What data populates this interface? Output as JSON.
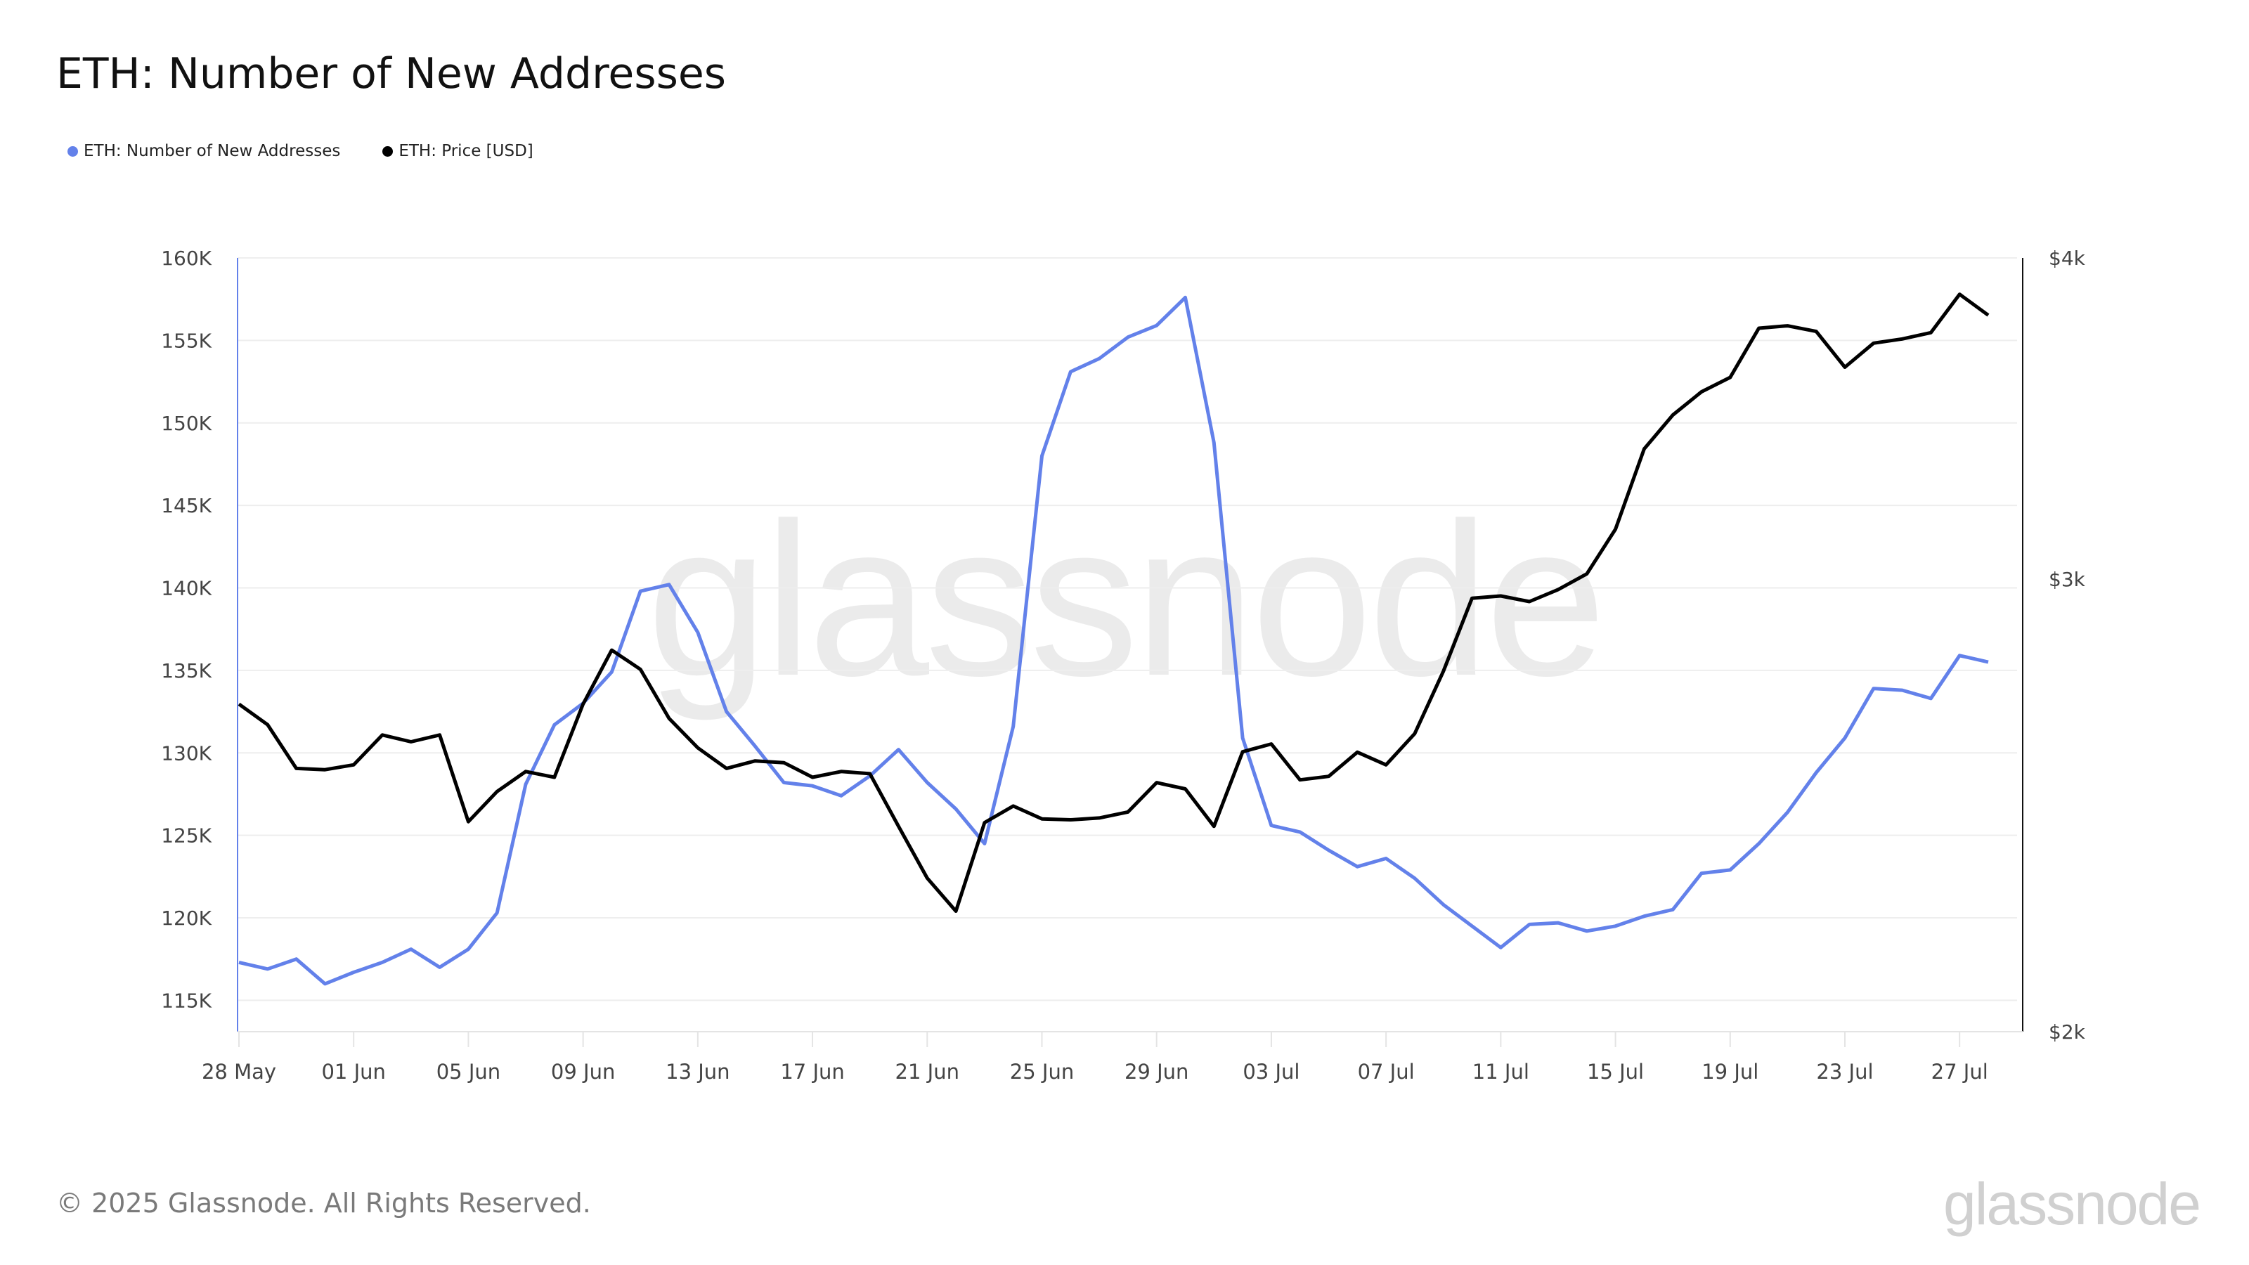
{
  "chart_data": {
    "type": "line",
    "title": "ETH: Number of New Addresses",
    "start_date": "28 May",
    "x_tick_labels": [
      "28 May",
      "01 Jun",
      "05 Jun",
      "09 Jun",
      "13 Jun",
      "17 Jun",
      "21 Jun",
      "25 Jun",
      "29 Jun",
      "03 Jul",
      "07 Jul",
      "11 Jul",
      "15 Jul",
      "19 Jul",
      "23 Jul",
      "27 Jul"
    ],
    "x_tick_every_days": 4,
    "left_axis": {
      "ticks": [
        115,
        120,
        125,
        130,
        135,
        140,
        145,
        150,
        155,
        160
      ],
      "tick_labels": [
        "115K",
        "120K",
        "125K",
        "130K",
        "135K",
        "140K",
        "145K",
        "150K",
        "155K",
        "160K"
      ],
      "unit": "K",
      "range": [
        113.1,
        160
      ]
    },
    "right_axis": {
      "scale": "log",
      "ticks": [
        2000,
        3000,
        4000
      ],
      "tick_labels": [
        "$2k",
        "$3k",
        "$4k"
      ],
      "range": [
        2000,
        4000
      ]
    },
    "legend_placement": "top-left",
    "grid": true,
    "series": [
      {
        "name": "ETH: Number of New Addresses",
        "axis": "left",
        "color": "#6381ea",
        "values": [
          117.3,
          116.9,
          117.5,
          116.0,
          116.7,
          117.3,
          118.1,
          117.0,
          118.1,
          120.3,
          128.1,
          131.7,
          133.0,
          134.9,
          139.8,
          140.2,
          137.3,
          132.5,
          130.4,
          128.2,
          128.0,
          127.4,
          128.6,
          130.2,
          128.2,
          126.6,
          124.5,
          131.6,
          148.0,
          153.1,
          153.9,
          155.2,
          155.9,
          157.6,
          148.8,
          130.9,
          125.6,
          125.2,
          124.1,
          123.1,
          123.6,
          122.4,
          120.8,
          119.5,
          118.2,
          119.6,
          119.7,
          119.2,
          119.5,
          120.1,
          120.5,
          122.7,
          122.9,
          124.5,
          126.4,
          128.8,
          130.9,
          133.9,
          133.8,
          133.3,
          135.9,
          135.5
        ]
      },
      {
        "name": "ETH: Price [USD]",
        "axis": "right",
        "color": "#000000",
        "values": [
          2682,
          2633,
          2532,
          2529,
          2540,
          2609,
          2593,
          2609,
          2414,
          2480,
          2525,
          2512,
          2682,
          2815,
          2767,
          2648,
          2579,
          2532,
          2549,
          2545,
          2512,
          2525,
          2520,
          2404,
          2295,
          2228,
          2412,
          2448,
          2420,
          2418,
          2422,
          2435,
          2500,
          2486,
          2404,
          2570,
          2588,
          2506,
          2514,
          2569,
          2540,
          2612,
          2762,
          2949,
          2955,
          2940,
          2972,
          3014,
          3137,
          3371,
          3475,
          3548,
          3594,
          3756,
          3764,
          3745,
          3627,
          3706,
          3720,
          3741,
          3872,
          3800
        ]
      }
    ]
  },
  "watermark": "glassnode",
  "footer": {
    "copyright": "© 2025 Glassnode. All Rights Reserved.",
    "logo": "glassnode"
  }
}
